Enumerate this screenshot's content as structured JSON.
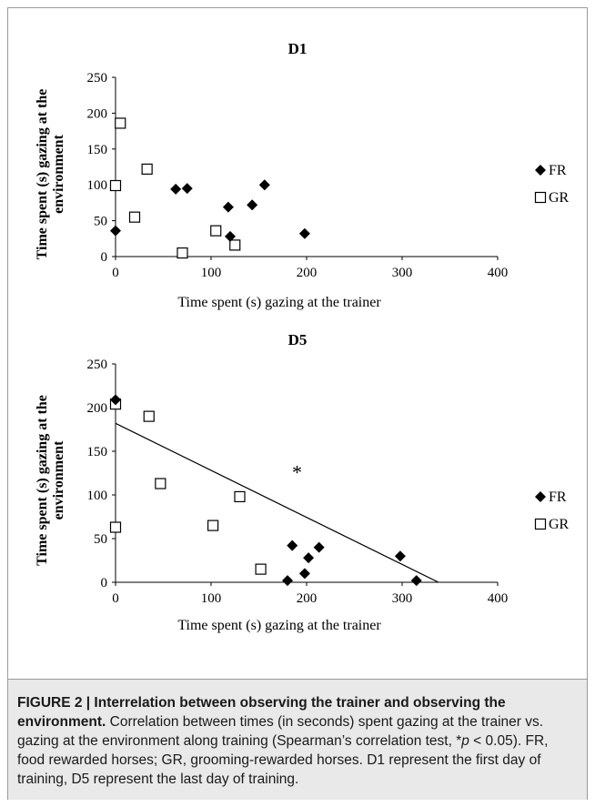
{
  "chart_data": [
    {
      "type": "scatter",
      "title": "D1",
      "xlabel": "Time spent (s) gazing at the trainer",
      "ylabel": "Time spent (s) gazing at the environment",
      "xlim": [
        0,
        400
      ],
      "ylim": [
        0,
        250
      ],
      "xticks": [
        "0",
        "100",
        "200",
        "300",
        "400"
      ],
      "yticks": [
        "0",
        "50",
        "100",
        "150",
        "200",
        "250"
      ],
      "grid": false,
      "legend": "right",
      "series": [
        {
          "name": "FR",
          "marker": "filled-diamond",
          "color": "#000000",
          "points": [
            [
              0,
              36
            ],
            [
              63,
              94
            ],
            [
              75,
              95
            ],
            [
              118,
              69
            ],
            [
              120,
              28
            ],
            [
              143,
              72
            ],
            [
              156,
              100
            ],
            [
              198,
              32
            ]
          ]
        },
        {
          "name": "GR",
          "marker": "open-square",
          "color": "#000000",
          "points": [
            [
              0,
              99
            ],
            [
              5,
              186
            ],
            [
              20,
              55
            ],
            [
              33,
              122
            ],
            [
              70,
              5
            ],
            [
              105,
              36
            ],
            [
              125,
              16
            ]
          ]
        }
      ]
    },
    {
      "type": "scatter",
      "title": "D5",
      "xlabel": "Time spent (s) gazing at the trainer",
      "ylabel": "Time spent (s) gazing at the environment",
      "xlim": [
        0,
        400
      ],
      "ylim": [
        0,
        250
      ],
      "xticks": [
        "0",
        "100",
        "200",
        "300",
        "400"
      ],
      "yticks": [
        "0",
        "50",
        "100",
        "150",
        "200",
        "250"
      ],
      "grid": false,
      "legend": "right",
      "annotation": "*",
      "trendline": {
        "x1": 0,
        "y1": 182,
        "x2": 338,
        "y2": 0
      },
      "series": [
        {
          "name": "FR",
          "marker": "filled-diamond",
          "color": "#000000",
          "points": [
            [
              0,
              209
            ],
            [
              180,
              2
            ],
            [
              185,
              42
            ],
            [
              198,
              10
            ],
            [
              202,
              28
            ],
            [
              213,
              40
            ],
            [
              298,
              30
            ],
            [
              315,
              2
            ]
          ]
        },
        {
          "name": "GR",
          "marker": "open-square",
          "color": "#000000",
          "points": [
            [
              0,
              63
            ],
            [
              0,
              204
            ],
            [
              35,
              190
            ],
            [
              47,
              113
            ],
            [
              102,
              65
            ],
            [
              130,
              98
            ],
            [
              152,
              15
            ]
          ]
        }
      ]
    }
  ],
  "caption": {
    "label": "FIGURE 2 | Interrelation between observing the trainer and observing the environment.",
    "text_before": " Correlation between times (in seconds) spent gazing at the trainer vs. gazing at the environment along training (Spearman’s correlation test, *",
    "p": "p",
    "text_after": " < 0.05). FR, food rewarded horses; GR, grooming-rewarded horses. D1 represent the first day of training, D5 represent the last day of training."
  }
}
